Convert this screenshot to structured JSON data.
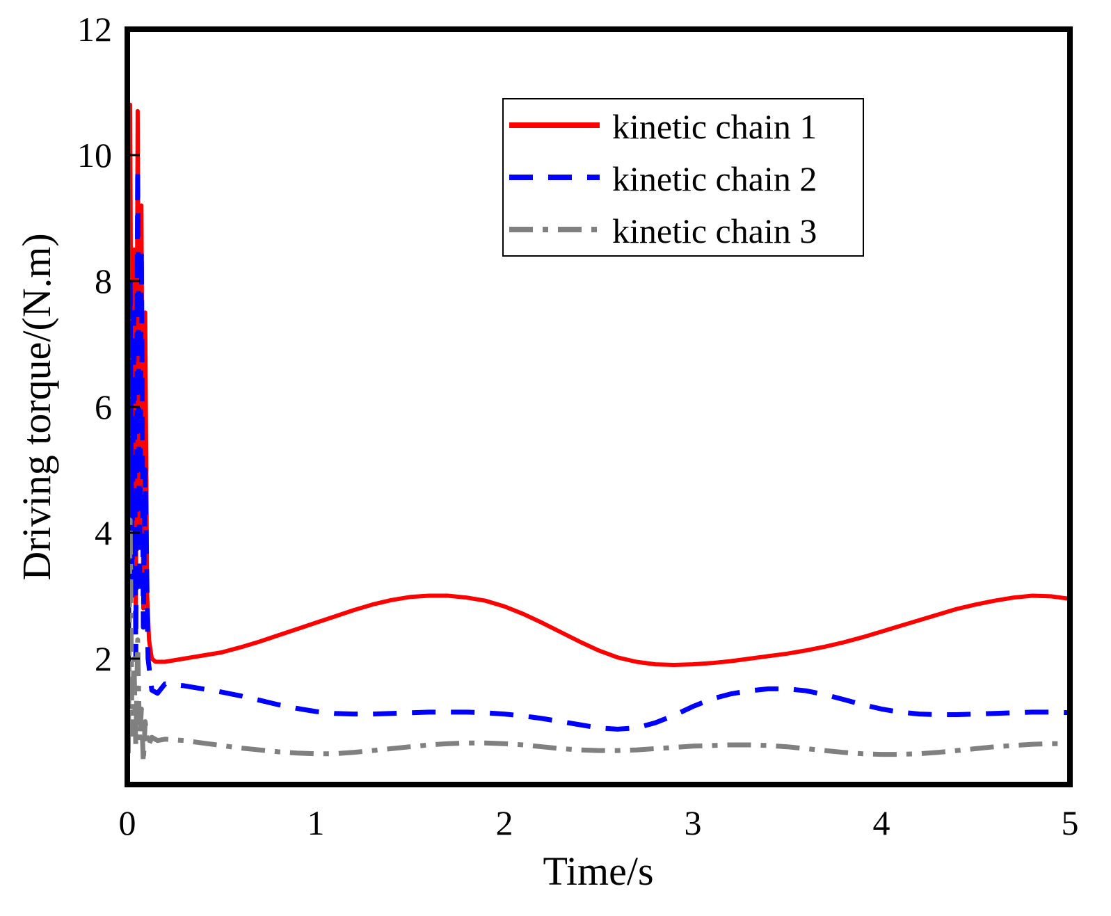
{
  "chart_data": {
    "type": "line",
    "title": "",
    "xlabel": "Time/s",
    "ylabel": "Driving torque/(N.m)",
    "xlim": [
      0,
      5
    ],
    "ylim": [
      0,
      12
    ],
    "xticks": [
      0,
      1,
      2,
      3,
      4,
      5
    ],
    "yticks": [
      2,
      4,
      6,
      8,
      10,
      12
    ],
    "xtick_labels": [
      "0",
      "1",
      "2",
      "3",
      "4",
      "5"
    ],
    "ytick_labels": [
      "2",
      "4",
      "6",
      "8",
      "10",
      "12"
    ],
    "grid": false,
    "legend_position": "top-right",
    "series": [
      {
        "name": "kinetic chain 1",
        "color": "#ff0000",
        "style": "solid",
        "x": [
          0.005,
          0.015,
          0.025,
          0.035,
          0.045,
          0.055,
          0.065,
          0.075,
          0.085,
          0.095,
          0.105,
          0.115,
          0.13,
          0.15,
          0.2,
          0.3,
          0.4,
          0.5,
          0.6,
          0.7,
          0.8,
          0.9,
          1.0,
          1.1,
          1.2,
          1.3,
          1.4,
          1.5,
          1.6,
          1.7,
          1.8,
          1.9,
          2.0,
          2.1,
          2.2,
          2.3,
          2.4,
          2.5,
          2.6,
          2.7,
          2.8,
          2.9,
          3.0,
          3.1,
          3.2,
          3.3,
          3.4,
          3.5,
          3.6,
          3.7,
          3.8,
          3.9,
          4.0,
          4.1,
          4.2,
          4.3,
          4.4,
          4.5,
          4.6,
          4.7,
          4.8,
          4.9,
          5.0
        ],
        "y": [
          1.5,
          10.8,
          3.5,
          8.5,
          2.5,
          10.7,
          4.0,
          9.2,
          2.8,
          7.5,
          3.0,
          2.3,
          2.0,
          1.95,
          1.95,
          2.0,
          2.05,
          2.1,
          2.18,
          2.27,
          2.37,
          2.47,
          2.57,
          2.67,
          2.77,
          2.86,
          2.93,
          2.98,
          3.0,
          3.0,
          2.97,
          2.92,
          2.83,
          2.71,
          2.57,
          2.42,
          2.27,
          2.13,
          2.02,
          1.95,
          1.91,
          1.9,
          1.91,
          1.93,
          1.96,
          2.0,
          2.04,
          2.08,
          2.13,
          2.19,
          2.26,
          2.34,
          2.43,
          2.52,
          2.61,
          2.7,
          2.79,
          2.86,
          2.92,
          2.97,
          3.0,
          2.99,
          2.95
        ]
      },
      {
        "name": "kinetic chain 2",
        "color": "#0000ff",
        "style": "dashed",
        "x": [
          0.005,
          0.015,
          0.025,
          0.035,
          0.045,
          0.055,
          0.065,
          0.075,
          0.085,
          0.095,
          0.11,
          0.13,
          0.16,
          0.2,
          0.3,
          0.4,
          0.5,
          0.6,
          0.7,
          0.8,
          0.9,
          1.0,
          1.1,
          1.2,
          1.3,
          1.4,
          1.5,
          1.6,
          1.7,
          1.8,
          1.9,
          2.0,
          2.1,
          2.2,
          2.3,
          2.4,
          2.5,
          2.6,
          2.7,
          2.8,
          2.9,
          3.0,
          3.1,
          3.2,
          3.3,
          3.4,
          3.5,
          3.6,
          3.7,
          3.8,
          3.9,
          4.0,
          4.1,
          4.2,
          4.3,
          4.4,
          4.5,
          4.6,
          4.7,
          4.8,
          4.9,
          5.0
        ],
        "y": [
          1.2,
          8.0,
          3.0,
          7.5,
          2.0,
          9.8,
          3.0,
          8.5,
          2.5,
          5.0,
          2.0,
          1.5,
          1.45,
          1.6,
          1.57,
          1.52,
          1.47,
          1.41,
          1.34,
          1.27,
          1.21,
          1.16,
          1.13,
          1.12,
          1.12,
          1.13,
          1.14,
          1.15,
          1.15,
          1.15,
          1.14,
          1.12,
          1.09,
          1.05,
          1.0,
          0.95,
          0.9,
          0.88,
          0.9,
          0.98,
          1.1,
          1.24,
          1.36,
          1.44,
          1.49,
          1.52,
          1.52,
          1.49,
          1.43,
          1.35,
          1.27,
          1.2,
          1.15,
          1.12,
          1.11,
          1.11,
          1.12,
          1.13,
          1.14,
          1.15,
          1.15,
          1.14
        ]
      },
      {
        "name": "kinetic chain 3",
        "color": "#808080",
        "style": "dashdot",
        "x": [
          0.005,
          0.015,
          0.025,
          0.035,
          0.045,
          0.055,
          0.065,
          0.075,
          0.085,
          0.095,
          0.11,
          0.13,
          0.16,
          0.2,
          0.3,
          0.4,
          0.5,
          0.6,
          0.7,
          0.8,
          0.9,
          1.0,
          1.1,
          1.2,
          1.3,
          1.4,
          1.5,
          1.6,
          1.7,
          1.8,
          1.9,
          2.0,
          2.1,
          2.2,
          2.3,
          2.4,
          2.5,
          2.6,
          2.7,
          2.8,
          2.9,
          3.0,
          3.1,
          3.2,
          3.3,
          3.4,
          3.5,
          3.6,
          3.7,
          3.8,
          3.9,
          4.0,
          4.1,
          4.2,
          4.3,
          4.4,
          4.5,
          4.6,
          4.7,
          4.8,
          4.9,
          5.0
        ],
        "y": [
          0.5,
          4.2,
          0.8,
          2.0,
          0.6,
          2.3,
          0.7,
          1.2,
          0.35,
          1.0,
          0.6,
          0.75,
          0.7,
          0.72,
          0.7,
          0.66,
          0.62,
          0.58,
          0.55,
          0.52,
          0.5,
          0.49,
          0.49,
          0.51,
          0.54,
          0.57,
          0.6,
          0.63,
          0.65,
          0.66,
          0.66,
          0.65,
          0.63,
          0.6,
          0.57,
          0.55,
          0.54,
          0.54,
          0.55,
          0.57,
          0.59,
          0.61,
          0.62,
          0.63,
          0.63,
          0.62,
          0.6,
          0.57,
          0.54,
          0.51,
          0.49,
          0.48,
          0.48,
          0.49,
          0.51,
          0.54,
          0.57,
          0.6,
          0.62,
          0.64,
          0.65,
          0.65
        ]
      }
    ]
  }
}
